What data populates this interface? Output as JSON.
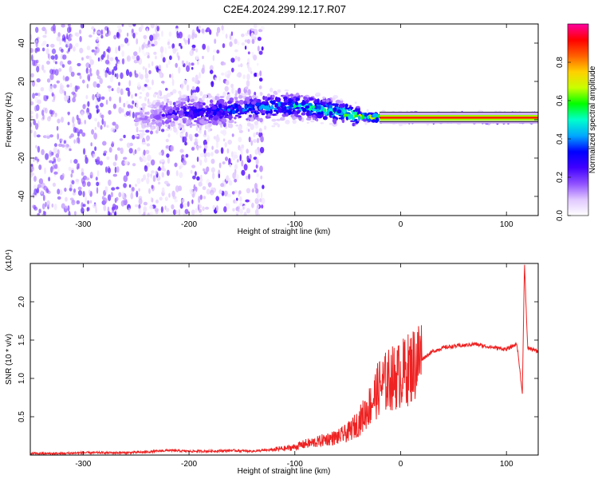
{
  "figure_title": "C2E4.2024.299.12.17.R07",
  "chart_data": [
    {
      "type": "heatmap",
      "title": "C2E4.2024.299.12.17.R07",
      "xlabel": "Height of straight line (km)",
      "ylabel": "Frequency (Hz)",
      "xlim": [
        -350,
        130
      ],
      "ylim": [
        -50,
        50
      ],
      "x_ticks": [
        -300,
        -200,
        -100,
        0,
        100
      ],
      "y_ticks": [
        -40,
        -20,
        0,
        20,
        40
      ],
      "colorbar": {
        "label": "Normalized spectral amplitude",
        "range": [
          0.0,
          1.0
        ],
        "ticks": [
          0.0,
          0.2,
          0.4,
          0.6,
          0.8
        ],
        "colormap": [
          "#ffffff",
          "#e0c8ff",
          "#9050ff",
          "#4000ff",
          "#0000ff",
          "#00a8ff",
          "#00ffcc",
          "#00ff00",
          "#c8ff00",
          "#ffd000",
          "#ff6000",
          "#ff0000",
          "#ff00a0"
        ]
      },
      "centerline": [
        {
          "x": -240,
          "y": 1,
          "amp": 0.15
        },
        {
          "x": -220,
          "y": 3,
          "amp": 0.25
        },
        {
          "x": -200,
          "y": 4,
          "amp": 0.3
        },
        {
          "x": -180,
          "y": 4,
          "amp": 0.35
        },
        {
          "x": -160,
          "y": 5,
          "amp": 0.4
        },
        {
          "x": -140,
          "y": 6,
          "amp": 0.4
        },
        {
          "x": -120,
          "y": 7,
          "amp": 0.45
        },
        {
          "x": -100,
          "y": 7,
          "amp": 0.5
        },
        {
          "x": -80,
          "y": 6,
          "amp": 0.55
        },
        {
          "x": -60,
          "y": 4,
          "amp": 0.6
        },
        {
          "x": -40,
          "y": 2,
          "amp": 0.7
        },
        {
          "x": -20,
          "y": 1,
          "amp": 0.8
        },
        {
          "x": 0,
          "y": 1,
          "amp": 0.85
        },
        {
          "x": 20,
          "y": 1,
          "amp": 0.9
        },
        {
          "x": 40,
          "y": 1,
          "amp": 0.9
        },
        {
          "x": 60,
          "y": 1,
          "amp": 0.9
        },
        {
          "x": 80,
          "y": 1,
          "amp": 0.9
        },
        {
          "x": 100,
          "y": 1,
          "amp": 0.9
        },
        {
          "x": 120,
          "y": 1,
          "amp": 0.9
        }
      ]
    },
    {
      "type": "line",
      "xlabel": "Height of straight line (km)",
      "ylabel": "SNR (10 * v/v)",
      "y_multiplier_label": "(x10⁴)",
      "xlim": [
        -350,
        130
      ],
      "ylim": [
        0,
        2.5
      ],
      "x_ticks": [
        -300,
        -200,
        -100,
        0,
        100
      ],
      "y_ticks": [
        0.5,
        1.0,
        1.5,
        2.0
      ],
      "y_unit_multiplier": 10000,
      "series": [
        {
          "color": "#ee2222",
          "points": [
            [
              -350,
              0.02
            ],
            [
              -320,
              0.02
            ],
            [
              -300,
              0.03
            ],
            [
              -280,
              0.03
            ],
            [
              -260,
              0.03
            ],
            [
              -240,
              0.04
            ],
            [
              -220,
              0.06
            ],
            [
              -200,
              0.05
            ],
            [
              -180,
              0.05
            ],
            [
              -160,
              0.06
            ],
            [
              -140,
              0.05
            ],
            [
              -130,
              0.06
            ],
            [
              -120,
              0.07
            ],
            [
              -110,
              0.08
            ],
            [
              -100,
              0.1
            ],
            [
              -90,
              0.14
            ],
            [
              -80,
              0.16
            ],
            [
              -70,
              0.2
            ],
            [
              -60,
              0.22
            ],
            [
              -50,
              0.28
            ],
            [
              -40,
              0.4
            ],
            [
              -30,
              0.6
            ],
            [
              -20,
              0.85
            ],
            [
              -10,
              0.95
            ],
            [
              0,
              1.0
            ],
            [
              10,
              1.1
            ],
            [
              20,
              1.25
            ],
            [
              30,
              1.35
            ],
            [
              40,
              1.4
            ],
            [
              50,
              1.42
            ],
            [
              60,
              1.43
            ],
            [
              70,
              1.45
            ],
            [
              80,
              1.42
            ],
            [
              90,
              1.4
            ],
            [
              100,
              1.38
            ],
            [
              110,
              1.45
            ],
            [
              115,
              0.8
            ],
            [
              117,
              2.5
            ],
            [
              120,
              1.4
            ],
            [
              130,
              1.35
            ]
          ]
        }
      ]
    }
  ]
}
